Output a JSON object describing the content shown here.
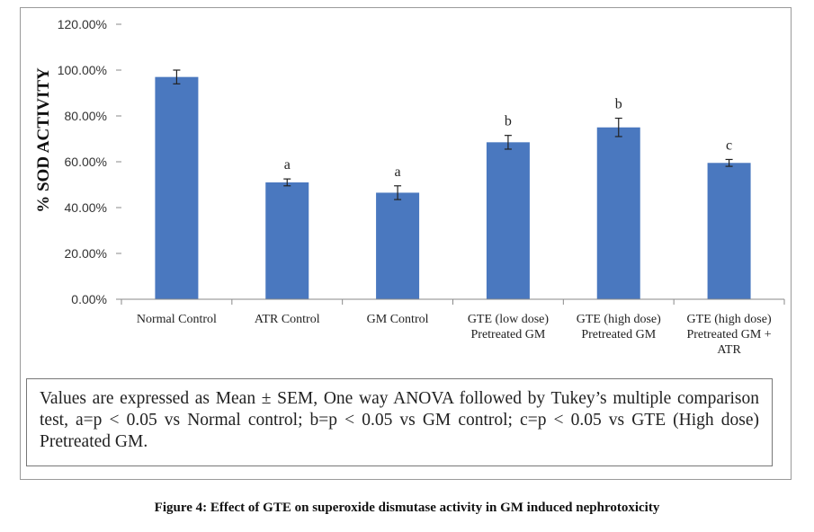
{
  "chart_data": {
    "type": "bar",
    "ylabel": "% SOD ACTIVITY",
    "xlabel": "",
    "ylim": [
      0,
      1.2
    ],
    "yticks": [
      "0.00%",
      "20.00%",
      "40.00%",
      "60.00%",
      "80.00%",
      "100.00%",
      "120.00%"
    ],
    "categories": [
      [
        "Normal Control"
      ],
      [
        "ATR Control"
      ],
      [
        "GM Control"
      ],
      [
        "GTE (low dose)",
        "Pretreated GM"
      ],
      [
        "GTE (high dose)",
        "Pretreated GM"
      ],
      [
        "GTE (high dose)",
        "Pretreated GM +",
        "ATR"
      ]
    ],
    "values": [
      0.97,
      0.51,
      0.465,
      0.685,
      0.75,
      0.595
    ],
    "errors": [
      0.03,
      0.015,
      0.03,
      0.03,
      0.04,
      0.015
    ],
    "significance": [
      "",
      "a",
      "a",
      "b",
      "b",
      "c"
    ],
    "bar_color": "#4a78bf",
    "grid": false,
    "legend": "none"
  },
  "note": "Values are expressed as Mean ± SEM, One way ANOVA followed by Tukey’s multiple comparison test, a=p < 0.05 vs Normal control; b=p < 0.05 vs GM control; c=p < 0.05 vs GTE (High dose) Pretreated GM.",
  "caption": "Figure 4: Effect of GTE on superoxide dismutase activity in GM induced nephrotoxicity"
}
